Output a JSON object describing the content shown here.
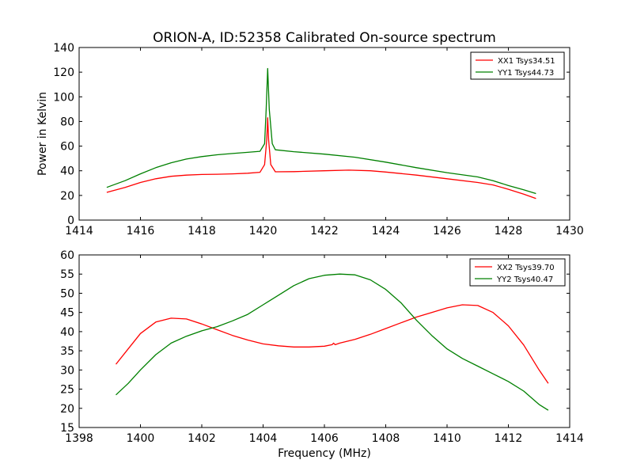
{
  "chart_data": [
    {
      "type": "line",
      "title": "ORION-A, ID:52358 Calibrated On-source spectrum",
      "xlabel": "",
      "ylabel": "Power in Kelvin",
      "xlim": [
        1414,
        1430
      ],
      "ylim": [
        0,
        140
      ],
      "xticks": [
        1414,
        1416,
        1418,
        1420,
        1422,
        1424,
        1426,
        1428,
        1430
      ],
      "yticks": [
        0,
        20,
        40,
        60,
        80,
        100,
        120,
        140
      ],
      "legend_position": "top-right",
      "series": [
        {
          "name": "XX1 Tsys34.51",
          "color": "#ff0000",
          "points": [
            [
              1414.9,
              22.5
            ],
            [
              1415.5,
              26.5
            ],
            [
              1416.0,
              30.5
            ],
            [
              1416.5,
              33.5
            ],
            [
              1417.0,
              35.5
            ],
            [
              1417.5,
              36.5
            ],
            [
              1418.0,
              37.0
            ],
            [
              1418.5,
              37.2
            ],
            [
              1419.0,
              37.5
            ],
            [
              1419.5,
              38.0
            ],
            [
              1419.9,
              38.8
            ],
            [
              1420.05,
              45.0
            ],
            [
              1420.12,
              65.0
            ],
            [
              1420.15,
              83.0
            ],
            [
              1420.18,
              65.0
            ],
            [
              1420.25,
              45.0
            ],
            [
              1420.4,
              39.2
            ],
            [
              1421.0,
              39.3
            ],
            [
              1422.0,
              40.0
            ],
            [
              1422.8,
              40.5
            ],
            [
              1423.5,
              40.0
            ],
            [
              1424.0,
              39.0
            ],
            [
              1425.0,
              36.5
            ],
            [
              1426.0,
              33.5
            ],
            [
              1427.0,
              30.5
            ],
            [
              1427.5,
              28.5
            ],
            [
              1428.0,
              25.0
            ],
            [
              1428.5,
              21.0
            ],
            [
              1428.9,
              17.5
            ]
          ]
        },
        {
          "name": "YY1 Tsys44.73",
          "color": "#008000",
          "points": [
            [
              1414.9,
              26.5
            ],
            [
              1415.5,
              32.0
            ],
            [
              1416.0,
              37.5
            ],
            [
              1416.5,
              42.5
            ],
            [
              1417.0,
              46.5
            ],
            [
              1417.5,
              49.5
            ],
            [
              1418.0,
              51.5
            ],
            [
              1418.5,
              53.0
            ],
            [
              1419.0,
              54.0
            ],
            [
              1419.5,
              55.0
            ],
            [
              1419.9,
              55.8
            ],
            [
              1420.05,
              62.0
            ],
            [
              1420.1,
              90.0
            ],
            [
              1420.15,
              123.0
            ],
            [
              1420.2,
              90.0
            ],
            [
              1420.3,
              62.0
            ],
            [
              1420.4,
              57.0
            ],
            [
              1421.0,
              55.5
            ],
            [
              1422.0,
              53.5
            ],
            [
              1423.0,
              51.0
            ],
            [
              1424.0,
              47.0
            ],
            [
              1425.0,
              42.5
            ],
            [
              1426.0,
              38.5
            ],
            [
              1427.0,
              35.0
            ],
            [
              1427.5,
              32.0
            ],
            [
              1428.0,
              28.0
            ],
            [
              1428.5,
              24.5
            ],
            [
              1428.9,
              21.5
            ]
          ]
        }
      ]
    },
    {
      "type": "line",
      "title": "",
      "xlabel": "Frequency (MHz)",
      "ylabel": "",
      "xlim": [
        1398,
        1414
      ],
      "ylim": [
        15,
        60
      ],
      "xticks": [
        1398,
        1400,
        1402,
        1404,
        1406,
        1408,
        1410,
        1412,
        1414
      ],
      "yticks": [
        15,
        20,
        25,
        30,
        35,
        40,
        45,
        50,
        55,
        60
      ],
      "legend_position": "top-right",
      "series": [
        {
          "name": "XX2 Tsys39.70",
          "color": "#ff0000",
          "points": [
            [
              1399.2,
              31.5
            ],
            [
              1399.6,
              35.5
            ],
            [
              1400.0,
              39.5
            ],
            [
              1400.5,
              42.5
            ],
            [
              1401.0,
              43.5
            ],
            [
              1401.5,
              43.3
            ],
            [
              1402.0,
              42.0
            ],
            [
              1402.5,
              40.5
            ],
            [
              1403.0,
              39.0
            ],
            [
              1403.5,
              37.8
            ],
            [
              1404.0,
              36.8
            ],
            [
              1404.5,
              36.3
            ],
            [
              1405.0,
              36.0
            ],
            [
              1405.5,
              36.0
            ],
            [
              1406.0,
              36.2
            ],
            [
              1406.25,
              36.6
            ],
            [
              1406.3,
              37.0
            ],
            [
              1406.35,
              36.6
            ],
            [
              1406.5,
              37.0
            ],
            [
              1407.0,
              38.0
            ],
            [
              1407.5,
              39.3
            ],
            [
              1408.0,
              40.8
            ],
            [
              1408.5,
              42.3
            ],
            [
              1409.0,
              43.8
            ],
            [
              1409.5,
              45.0
            ],
            [
              1410.0,
              46.2
            ],
            [
              1410.5,
              47.0
            ],
            [
              1411.0,
              46.8
            ],
            [
              1411.5,
              45.0
            ],
            [
              1412.0,
              41.5
            ],
            [
              1412.5,
              36.5
            ],
            [
              1413.0,
              30.0
            ],
            [
              1413.3,
              26.5
            ]
          ]
        },
        {
          "name": "YY2 Tsys40.47",
          "color": "#008000",
          "points": [
            [
              1399.2,
              23.5
            ],
            [
              1399.6,
              26.5
            ],
            [
              1400.0,
              30.0
            ],
            [
              1400.5,
              34.0
            ],
            [
              1401.0,
              37.0
            ],
            [
              1401.5,
              38.8
            ],
            [
              1402.0,
              40.2
            ],
            [
              1402.5,
              41.3
            ],
            [
              1403.0,
              42.8
            ],
            [
              1403.5,
              44.5
            ],
            [
              1404.0,
              47.0
            ],
            [
              1404.5,
              49.5
            ],
            [
              1405.0,
              52.0
            ],
            [
              1405.5,
              53.8
            ],
            [
              1406.0,
              54.7
            ],
            [
              1406.5,
              55.0
            ],
            [
              1407.0,
              54.8
            ],
            [
              1407.5,
              53.5
            ],
            [
              1408.0,
              51.0
            ],
            [
              1408.5,
              47.5
            ],
            [
              1409.0,
              43.0
            ],
            [
              1409.5,
              39.0
            ],
            [
              1410.0,
              35.5
            ],
            [
              1410.5,
              33.0
            ],
            [
              1411.0,
              31.0
            ],
            [
              1411.5,
              29.0
            ],
            [
              1412.0,
              27.0
            ],
            [
              1412.5,
              24.5
            ],
            [
              1413.0,
              21.0
            ],
            [
              1413.3,
              19.5
            ]
          ]
        }
      ]
    }
  ]
}
